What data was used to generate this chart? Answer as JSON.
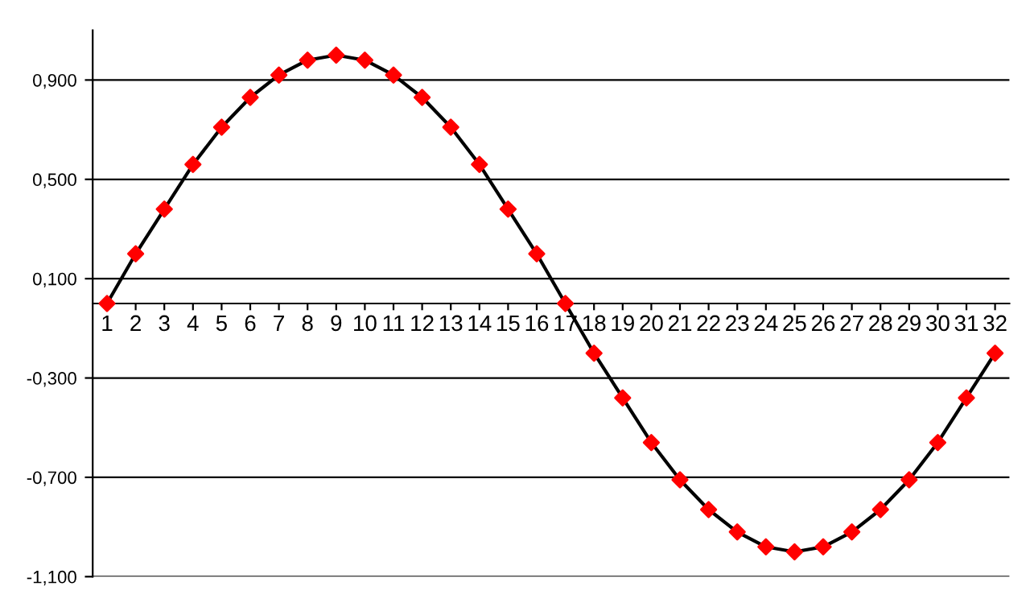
{
  "chart_data": {
    "type": "line",
    "categories": [
      "1",
      "2",
      "3",
      "4",
      "5",
      "6",
      "7",
      "8",
      "9",
      "10",
      "11",
      "12",
      "13",
      "14",
      "15",
      "16",
      "17",
      "18",
      "19",
      "20",
      "21",
      "22",
      "23",
      "24",
      "25",
      "26",
      "27",
      "28",
      "29",
      "30",
      "31",
      "32"
    ],
    "series": [
      {
        "color": "#000000",
        "colors": [
          "#ff0000",
          "#ff0000",
          "#ff0000",
          "#ff0000",
          "#ff0000",
          "#ff0000",
          "#ff0000",
          "#ff0000",
          "#ff0000",
          "#ff0000",
          "#ff0000",
          "#ff0000",
          "#ff0000",
          "#ff0000",
          "#ff0000",
          "#ff0000",
          "#ff0000",
          "#ff0000",
          "#ff0000",
          "#ff0000",
          "#ff0000",
          "#ff0000",
          "#ff0000",
          "#ff0000",
          "#ff0000",
          "#ff0000",
          "#ff0000",
          "#ff0000",
          "#ff0000",
          "#ff0000",
          "#ff0000",
          "#ff0000"
        ],
        "values": [
          0,
          0.2,
          0.38,
          0.56,
          0.71,
          0.83,
          0.92,
          0.98,
          1.0,
          0.98,
          0.92,
          0.83,
          0.71,
          0.56,
          0.38,
          0.2,
          0,
          -0.2,
          -0.38,
          -0.56,
          -0.71,
          -0.83,
          -0.92,
          -0.98,
          -1.0,
          -0.98,
          -0.92,
          -0.83,
          -0.71,
          -0.56,
          -0.38,
          -0.2
        ]
      }
    ],
    "marker": "diamond",
    "ylim": [
      -1.1,
      1.1
    ],
    "yticks": [
      {
        "value": -1.1,
        "label": "-1,100"
      },
      {
        "value": -0.7,
        "label": "-0,700"
      },
      {
        "value": -0.3,
        "label": "-0,300"
      },
      {
        "value": 0.1,
        "label": "0,100"
      },
      {
        "value": 0.5,
        "label": "0,500"
      },
      {
        "value": 0.9,
        "label": "0,900"
      }
    ],
    "grid": "y",
    "legend": false
  }
}
